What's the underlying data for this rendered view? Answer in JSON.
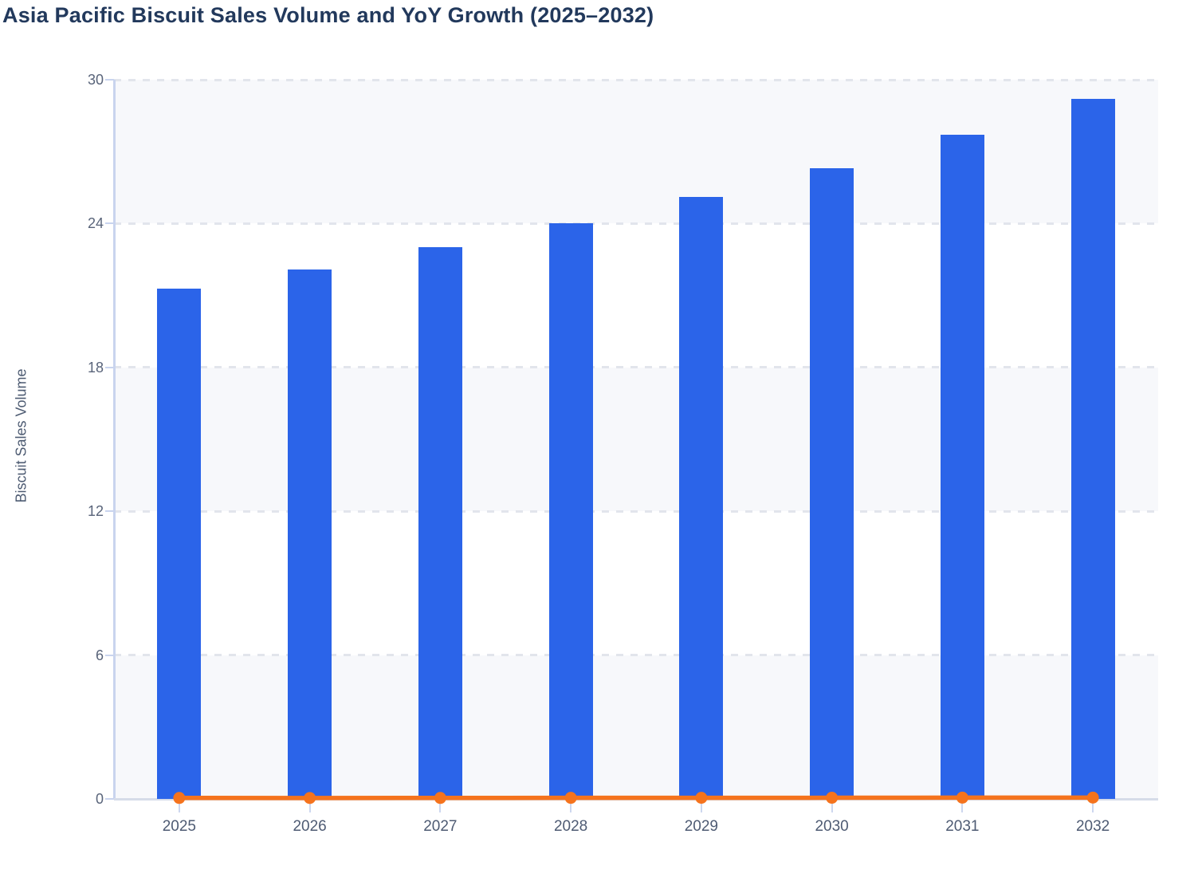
{
  "title": "Asia Pacific Biscuit Sales Volume and YoY Growth (2025–2032)",
  "colors": {
    "bar": "#2b64e9",
    "line": "#f5731d",
    "title_text": "#22395c",
    "axis_text": "#4e5b73",
    "band_fill": "#f7f8fb",
    "gridline": "#e2e5ec",
    "axis_line": "#c9d4ee",
    "zero_line": "#d6dce9"
  },
  "chart_data": {
    "type": "bar",
    "title": "Asia Pacific Biscuit Sales Volume and YoY Growth (2025–2032)",
    "xlabel": "",
    "ylabel": "Biscuit Sales Volume",
    "categories": [
      "2025",
      "2026",
      "2027",
      "2028",
      "2029",
      "2030",
      "2031",
      "2032"
    ],
    "series": [
      {
        "name": "Biscuit Sales Volume",
        "type": "bar",
        "values": [
          21.3,
          22.1,
          23.0,
          24.0,
          25.1,
          26.3,
          27.7,
          29.2
        ]
      },
      {
        "name": "YoY Growth",
        "type": "line",
        "values": [
          0.04,
          0.038,
          0.041,
          0.044,
          0.046,
          0.048,
          0.053,
          0.054
        ],
        "note": "plotted against the same 0–30 axis, so the line appears flat at ~0"
      }
    ],
    "ylim": [
      0,
      30
    ],
    "y_ticks": [
      0,
      6,
      12,
      18,
      24,
      30
    ],
    "grid": "horizontal dashed, alternating shaded bands every 6 units",
    "legend": "none"
  }
}
